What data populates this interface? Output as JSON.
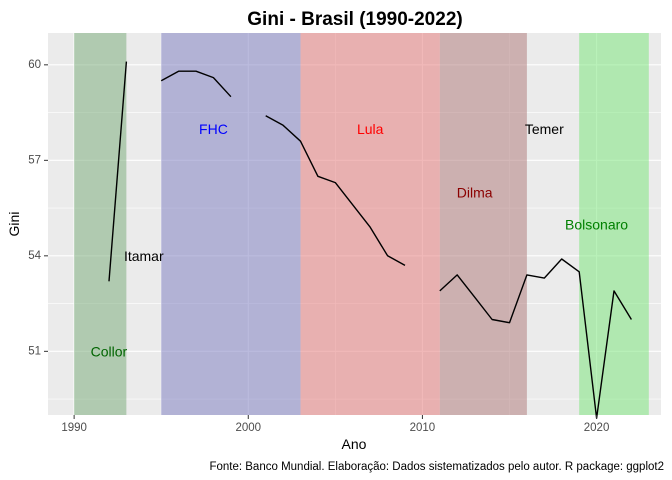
{
  "chart_data": {
    "type": "line",
    "title": "Gini - Brasil (1990-2022)",
    "xlabel": "Ano",
    "ylabel": "Gini",
    "caption": "Fonte: Banco Mundial. Elaboração: Dados sistematizados pelo autor. R package: ggplot2",
    "xlim": [
      1988.5,
      2023.7
    ],
    "ylim": [
      49.0,
      61.0
    ],
    "x_ticks": [
      1990,
      2000,
      2010,
      2020
    ],
    "y_ticks": [
      51,
      54,
      57,
      60
    ],
    "grid": true,
    "legend": "none",
    "series": [
      {
        "x": [
          1992,
          1993,
          null,
          1995,
          1996,
          1997,
          1998,
          1999,
          null,
          2001,
          2002,
          2003,
          2004,
          2005,
          2006,
          2007,
          2008,
          2009,
          null,
          2011,
          2012,
          2013,
          2014,
          2015,
          2016,
          2017,
          2018,
          2019,
          2020,
          2021,
          2022
        ],
        "y": [
          53.2,
          60.1,
          null,
          59.5,
          59.8,
          59.8,
          59.6,
          59.0,
          null,
          58.4,
          58.1,
          57.6,
          56.5,
          56.3,
          55.6,
          54.9,
          54.0,
          53.7,
          null,
          52.9,
          53.4,
          52.7,
          52.0,
          51.9,
          53.4,
          53.3,
          53.9,
          53.5,
          48.9,
          52.9,
          52.0
        ],
        "color": "#000000"
      }
    ],
    "periods": [
      {
        "label": "Collor",
        "start": 1990,
        "end": 1993,
        "fill": "#7fae7f",
        "text_color": "#006400",
        "label_x": 1992.0,
        "label_y": 50.95
      },
      {
        "label": "Itamar",
        "start": 1993,
        "end": 1995,
        "fill": "#ebebeb",
        "text_color": "#000000",
        "label_x": 1994.0,
        "label_y": 53.95
      },
      {
        "label": "FHC",
        "start": 1995,
        "end": 2003,
        "fill": "#8484c2",
        "text_color": "#0000ff",
        "label_x": 1998.0,
        "label_y": 57.95
      },
      {
        "label": "Lula",
        "start": 2003,
        "end": 2011,
        "fill": "#e58080",
        "text_color": "#ff0000",
        "label_x": 2007.0,
        "label_y": 57.95
      },
      {
        "label": "Dilma",
        "start": 2011,
        "end": 2016,
        "fill": "#b38080",
        "text_color": "#8b0000",
        "label_x": 2013.0,
        "label_y": 55.95
      },
      {
        "label": "Temer",
        "start": 2016,
        "end": 2019,
        "fill": "#ebebeb",
        "text_color": "#000000",
        "label_x": 2017.0,
        "label_y": 57.95
      },
      {
        "label": "Bolsonaro",
        "start": 2019,
        "end": 2023,
        "fill": "#7fe57f",
        "text_color": "#008000",
        "label_x": 2020.0,
        "label_y": 54.95
      }
    ]
  }
}
